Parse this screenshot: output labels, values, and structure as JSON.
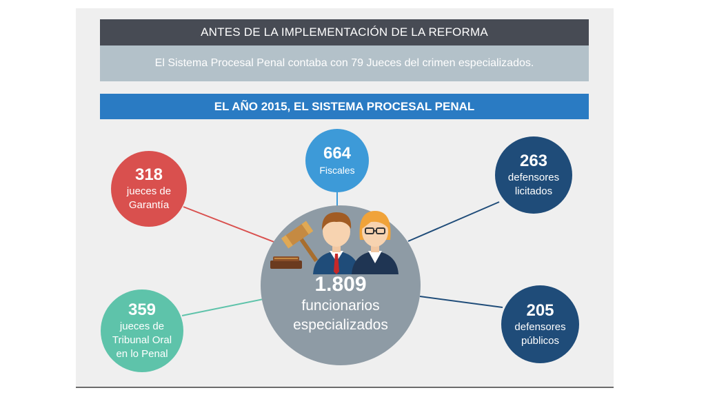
{
  "before": {
    "header": "ANTES DE LA IMPLEMENTACIÓN DE LA REFORMA",
    "text": "El Sistema Procesal Penal contaba con  79 Jueces del crimen especializados."
  },
  "year_header": "EL AÑO 2015, EL SISTEMA PROCESAL PENAL",
  "center": {
    "number": "1.809",
    "label1": "funcionarios",
    "label2": "especializados"
  },
  "circles": {
    "fiscales": {
      "number": "664",
      "label1": "Fiscales",
      "color": "#3d9ad8"
    },
    "garantia": {
      "number": "318",
      "label1": "jueces de",
      "label2": "Garantía",
      "color": "#d9504e"
    },
    "licitados": {
      "number": "263",
      "label1": "defensores",
      "label2": "licitados",
      "color": "#1f4c79"
    },
    "oral": {
      "number": "359",
      "label1": "jueces de",
      "label2": "Tribunal Oral",
      "label3": "en lo Penal",
      "color": "#5ec3aa"
    },
    "publicos": {
      "number": "205",
      "label1": "defensores",
      "label2": "públicos",
      "color": "#1f4c79"
    }
  },
  "icons": [
    "gavel-icon",
    "male-official-icon",
    "female-official-icon"
  ]
}
